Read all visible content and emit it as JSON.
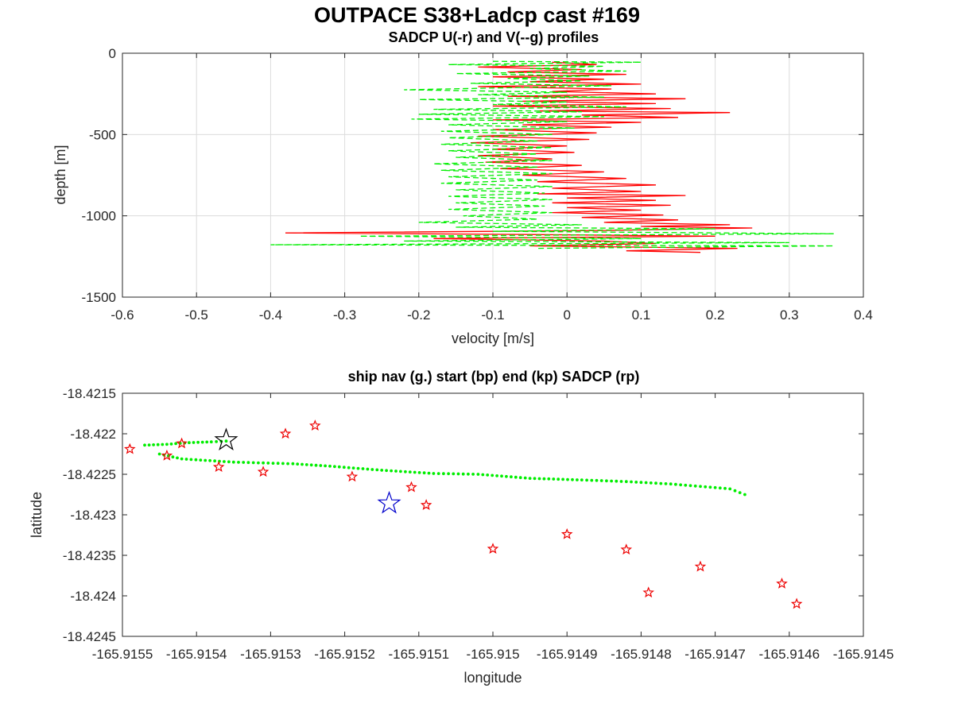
{
  "figure": {
    "title": "OUTPACE S38+Ladcp cast #169"
  },
  "chart_data": [
    {
      "type": "line",
      "title": "SADCP U(-r) and V(--g) profiles",
      "xlabel": "velocity [m/s]",
      "ylabel": "depth [m]",
      "xlim": [
        -0.6,
        0.4
      ],
      "ylim": [
        -1500,
        0
      ],
      "xticks": [
        -0.6,
        -0.5,
        -0.4,
        -0.3,
        -0.2,
        -0.1,
        0,
        0.1,
        0.2,
        0.3,
        0.4
      ],
      "xtick_labels": [
        "-0.6",
        "-0.5",
        "-0.4",
        "-0.3",
        "-0.2",
        "-0.1",
        "0",
        "0.1",
        "0.2",
        "0.3",
        "0.4"
      ],
      "yticks": [
        0,
        -500,
        -1000,
        -1500
      ],
      "ytick_labels": [
        "0",
        "-500",
        "-1000",
        "-1500"
      ],
      "grid": true,
      "series": [
        {
          "color": "#ff0000",
          "style": "solid",
          "points": [
            [
              -0.02,
              -55
            ],
            [
              0.04,
              -70
            ],
            [
              -0.12,
              -85
            ],
            [
              0.02,
              -100
            ],
            [
              -0.08,
              -115
            ],
            [
              0.08,
              -130
            ],
            [
              -0.1,
              -145
            ],
            [
              0.05,
              -160
            ],
            [
              -0.05,
              -175
            ],
            [
              0.1,
              -190
            ],
            [
              -0.12,
              -205
            ],
            [
              0.06,
              -220
            ],
            [
              -0.02,
              -235
            ],
            [
              0.12,
              -250
            ],
            [
              -0.08,
              -265
            ],
            [
              0.16,
              -280
            ],
            [
              -0.06,
              -295
            ],
            [
              0.12,
              -310
            ],
            [
              -0.1,
              -325
            ],
            [
              0.14,
              -340
            ],
            [
              -0.04,
              -355
            ],
            [
              0.22,
              -365
            ],
            [
              0.02,
              -380
            ],
            [
              0.15,
              -395
            ],
            [
              -0.1,
              -410
            ],
            [
              0.1,
              -425
            ],
            [
              -0.06,
              -440
            ],
            [
              0.06,
              -455
            ],
            [
              -0.1,
              -470
            ],
            [
              0.04,
              -490
            ],
            [
              -0.12,
              -510
            ],
            [
              0.03,
              -530
            ],
            [
              -0.13,
              -550
            ],
            [
              0,
              -570
            ],
            [
              -0.1,
              -590
            ],
            [
              0.01,
              -610
            ],
            [
              -0.12,
              -630
            ],
            [
              -0.02,
              -650
            ],
            [
              -0.11,
              -670
            ],
            [
              0.02,
              -690
            ],
            [
              -0.09,
              -710
            ],
            [
              0.05,
              -730
            ],
            [
              -0.06,
              -750
            ],
            [
              0.08,
              -770
            ],
            [
              -0.04,
              -790
            ],
            [
              0.12,
              -810
            ],
            [
              -0.02,
              -830
            ],
            [
              0.1,
              -850
            ],
            [
              -0.04,
              -865
            ],
            [
              0.16,
              -875
            ],
            [
              0,
              -890
            ],
            [
              0.12,
              -905
            ],
            [
              -0.02,
              -920
            ],
            [
              0.14,
              -935
            ],
            [
              0,
              -950
            ],
            [
              0.1,
              -965
            ],
            [
              -0.02,
              -980
            ],
            [
              0.13,
              -995
            ],
            [
              0.02,
              -1010
            ],
            [
              0.15,
              -1025
            ],
            [
              0.05,
              -1040
            ],
            [
              0.22,
              -1055
            ],
            [
              0.1,
              -1065
            ],
            [
              0.25,
              -1075
            ],
            [
              0.05,
              -1090
            ],
            [
              -0.38,
              -1105
            ],
            [
              -0.05,
              -1115
            ],
            [
              0.2,
              -1125
            ],
            [
              -0.18,
              -1140
            ],
            [
              0.05,
              -1155
            ],
            [
              0.12,
              -1170
            ],
            [
              -0.05,
              -1185
            ],
            [
              0.23,
              -1200
            ],
            [
              0.08,
              -1215
            ],
            [
              0.18,
              -1225
            ]
          ]
        },
        {
          "color": "#00ee00",
          "style": "dashed",
          "points": [
            [
              -0.1,
              -50
            ],
            [
              0.1,
              -55
            ],
            [
              -0.16,
              -70
            ],
            [
              0.05,
              -80
            ],
            [
              -0.05,
              -95
            ],
            [
              0.08,
              -110
            ],
            [
              -0.15,
              -125
            ],
            [
              0.03,
              -140
            ],
            [
              -0.08,
              -155
            ],
            [
              0.02,
              -170
            ],
            [
              -0.13,
              -185
            ],
            [
              0.06,
              -200
            ],
            [
              -0.22,
              -225
            ],
            [
              0,
              -240
            ],
            [
              -0.12,
              -255
            ],
            [
              0.05,
              -270
            ],
            [
              -0.2,
              -285
            ],
            [
              0,
              -300
            ],
            [
              -0.1,
              -315
            ],
            [
              0.08,
              -330
            ],
            [
              -0.18,
              -345
            ],
            [
              0.02,
              -360
            ],
            [
              -0.2,
              -375
            ],
            [
              0.05,
              -390
            ],
            [
              -0.21,
              -405
            ],
            [
              0,
              -420
            ],
            [
              -0.16,
              -440
            ],
            [
              0.01,
              -460
            ],
            [
              -0.17,
              -480
            ],
            [
              -0.02,
              -500
            ],
            [
              -0.16,
              -520
            ],
            [
              -0.04,
              -540
            ],
            [
              -0.17,
              -560
            ],
            [
              -0.02,
              -580
            ],
            [
              -0.16,
              -600
            ],
            [
              -0.04,
              -620
            ],
            [
              -0.15,
              -640
            ],
            [
              -0.02,
              -660
            ],
            [
              -0.18,
              -680
            ],
            [
              -0.04,
              -700
            ],
            [
              -0.17,
              -720
            ],
            [
              -0.02,
              -740
            ],
            [
              -0.16,
              -760
            ],
            [
              -0.04,
              -780
            ],
            [
              -0.17,
              -800
            ],
            [
              -0.02,
              -820
            ],
            [
              -0.15,
              -840
            ],
            [
              -0.03,
              -860
            ],
            [
              -0.16,
              -880
            ],
            [
              -0.02,
              -900
            ],
            [
              -0.15,
              -920
            ],
            [
              -0.03,
              -940
            ],
            [
              -0.16,
              -960
            ],
            [
              -0.02,
              -980
            ],
            [
              -0.14,
              -1000
            ],
            [
              -0.04,
              -1020
            ],
            [
              -0.2,
              -1040
            ],
            [
              0.02,
              -1055
            ],
            [
              -0.15,
              -1070
            ],
            [
              0.2,
              -1080
            ],
            [
              -0.1,
              -1095
            ],
            [
              0.36,
              -1110
            ],
            [
              -0.28,
              -1125
            ],
            [
              0.1,
              -1140
            ],
            [
              -0.22,
              -1155
            ],
            [
              0.3,
              -1165
            ],
            [
              -0.4,
              -1178
            ],
            [
              0.36,
              -1185
            ],
            [
              -0.04,
              -1200
            ]
          ]
        }
      ]
    },
    {
      "type": "scatter",
      "title": "ship nav (g.) start (bp) end (kp) SADCP (rp)",
      "xlabel": "longitude",
      "ylabel": "latitude",
      "xlim": [
        -165.9155,
        -165.9145
      ],
      "ylim": [
        -18.4245,
        -18.4215
      ],
      "xticks": [
        -165.9155,
        -165.9154,
        -165.9153,
        -165.9152,
        -165.9151,
        -165.915,
        -165.9149,
        -165.9148,
        -165.9147,
        -165.9146,
        -165.9145
      ],
      "xtick_labels": [
        "-165.9155",
        "-165.9154",
        "-165.9153",
        "-165.9152",
        "-165.9151",
        "-165.915",
        "-165.9149",
        "-165.9148",
        "-165.9147",
        "-165.9146",
        "-165.9145"
      ],
      "yticks": [
        -18.4215,
        -18.422,
        -18.4225,
        -18.423,
        -18.4235,
        -18.424,
        -18.4245
      ],
      "ytick_labels": [
        "-18.4215",
        "-18.422",
        "-18.4225",
        "-18.423",
        "-18.4235",
        "-18.424",
        "-18.4245"
      ],
      "grid": false,
      "ship_nav": {
        "color": "#00ee00",
        "segments": [
          [
            [
              -165.91547,
              -18.42214
            ],
            [
              -165.91544,
              -18.42213
            ],
            [
              -165.91541,
              -18.42211
            ],
            [
              -165.91538,
              -18.4221
            ],
            [
              -165.91536,
              -18.42209
            ]
          ],
          [
            [
              -165.91545,
              -18.42225
            ],
            [
              -165.91542,
              -18.42231
            ],
            [
              -165.91535,
              -18.42235
            ],
            [
              -165.91527,
              -18.42237
            ],
            [
              -165.91522,
              -18.4224
            ],
            [
              -165.91515,
              -18.42245
            ],
            [
              -165.91508,
              -18.42249
            ],
            [
              -165.91502,
              -18.4225
            ],
            [
              -165.91495,
              -18.42255
            ],
            [
              -165.91488,
              -18.42257
            ],
            [
              -165.91482,
              -18.42259
            ],
            [
              -165.91476,
              -18.42262
            ],
            [
              -165.91472,
              -18.42265
            ],
            [
              -165.91468,
              -18.42268
            ],
            [
              -165.91466,
              -18.42275
            ]
          ]
        ]
      },
      "start": {
        "lon": -165.91536,
        "lat": -18.42208,
        "color": "#000000"
      },
      "end": {
        "lon": -165.91514,
        "lat": -18.42286,
        "color": "#0000cc"
      },
      "sadcp": {
        "color": "#ee0000",
        "points": [
          [
            -165.91549,
            -18.42219
          ],
          [
            -165.91544,
            -18.42227
          ],
          [
            -165.91542,
            -18.42212
          ],
          [
            -165.91537,
            -18.42241
          ],
          [
            -165.91531,
            -18.42247
          ],
          [
            -165.91528,
            -18.422
          ],
          [
            -165.91524,
            -18.4219
          ],
          [
            -165.91519,
            -18.42253
          ],
          [
            -165.91511,
            -18.42266
          ],
          [
            -165.91509,
            -18.42288
          ],
          [
            -165.915,
            -18.42342
          ],
          [
            -165.9149,
            -18.42324
          ],
          [
            -165.91482,
            -18.42343
          ],
          [
            -165.91479,
            -18.42396
          ],
          [
            -165.91472,
            -18.42364
          ],
          [
            -165.91461,
            -18.42385
          ],
          [
            -165.91459,
            -18.4241
          ]
        ]
      }
    }
  ]
}
